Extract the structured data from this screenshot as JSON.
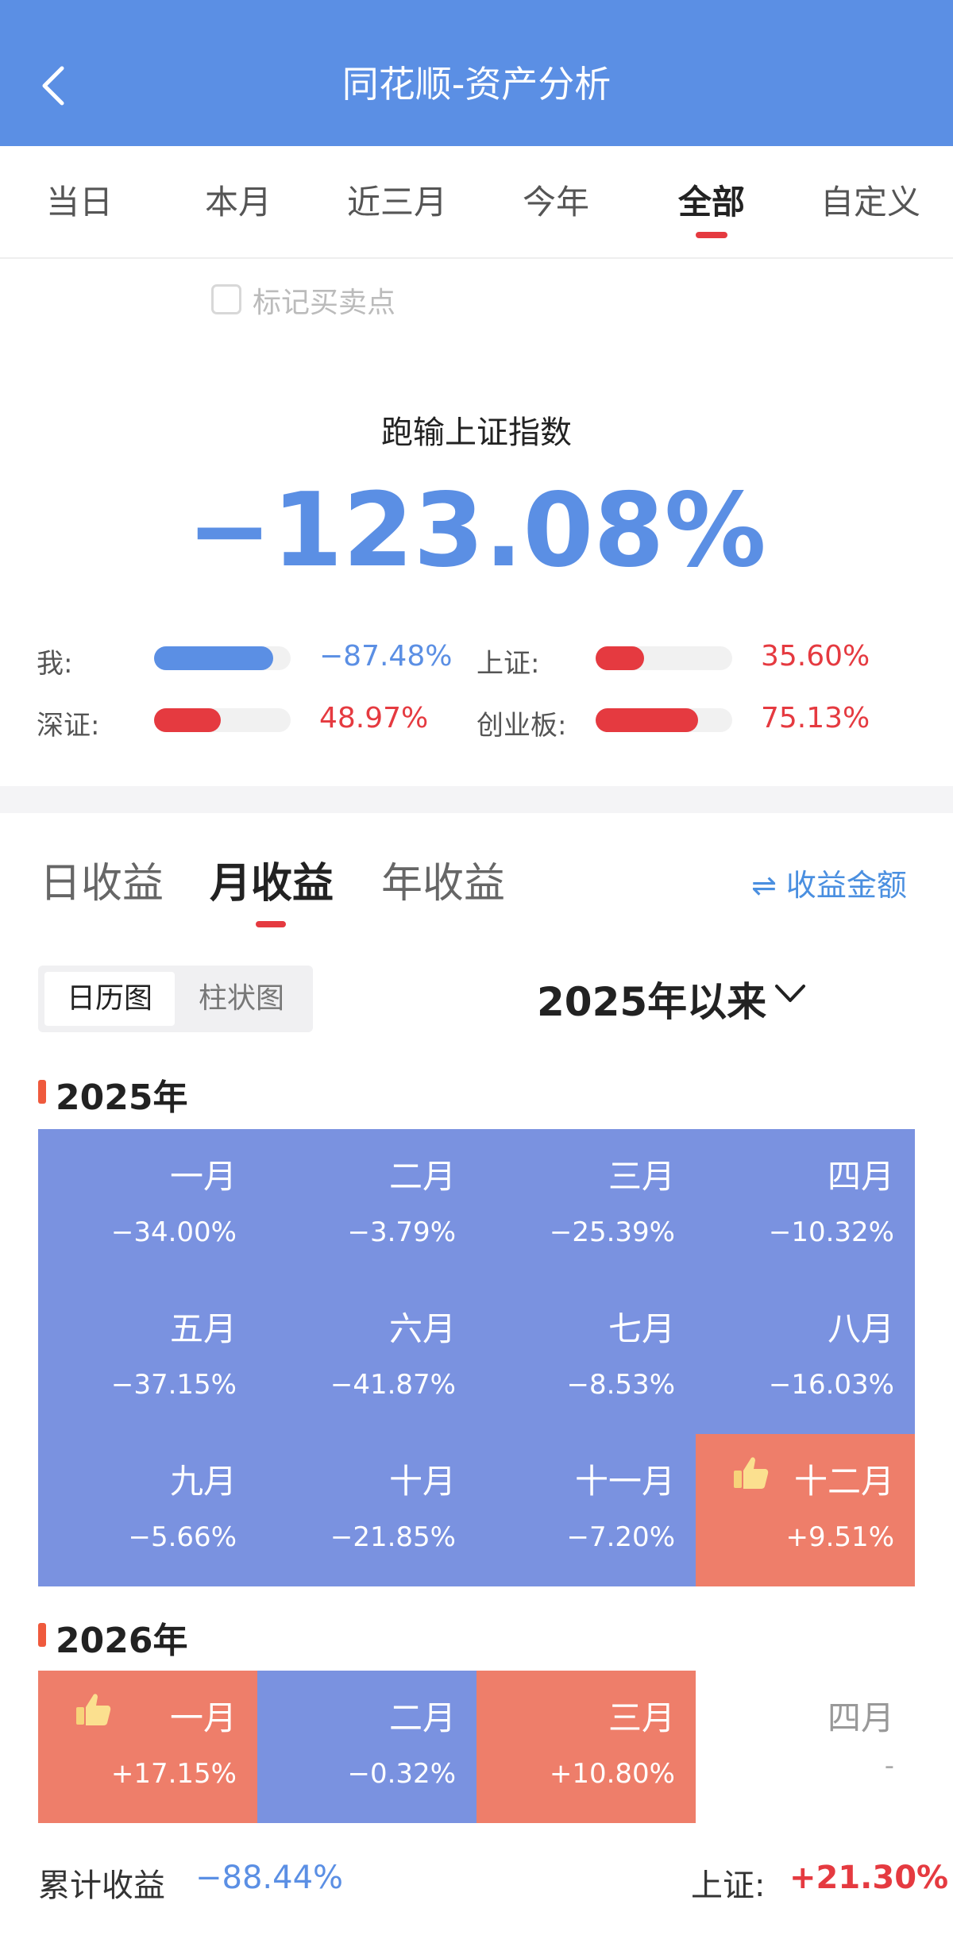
{
  "header": {
    "title": "同花顺-资产分析"
  },
  "tabs": [
    "当日",
    "本月",
    "近三月",
    "今年",
    "全部",
    "自定义"
  ],
  "active_tab": "全部",
  "mark_trades": {
    "label": "标记买卖点",
    "checked": false
  },
  "summary": {
    "label": "跑输上证指数",
    "value": "−123.08%"
  },
  "compare": {
    "me": {
      "label": "我:",
      "value": "−87.48%",
      "fraction": 0.87
    },
    "sh": {
      "label": "上证:",
      "value": "35.60%",
      "fraction": 0.356
    },
    "sz": {
      "label": "深证:",
      "value": "48.97%",
      "fraction": 0.49
    },
    "cyb": {
      "label": "创业板:",
      "value": "75.13%",
      "fraction": 0.75
    }
  },
  "earnings_tabs": [
    "日收益",
    "月收益",
    "年收益"
  ],
  "active_earnings_tab": "月收益",
  "toggle_amount": "⇌ 收益金额",
  "view_options": [
    "日历图",
    "柱状图"
  ],
  "active_view": "日历图",
  "range": "2025年以来",
  "years": [
    {
      "year": "2025年",
      "months": [
        {
          "name": "一月",
          "value": "−34.00%",
          "positive": false
        },
        {
          "name": "二月",
          "value": "−3.79%",
          "positive": false
        },
        {
          "name": "三月",
          "value": "−25.39%",
          "positive": false
        },
        {
          "name": "四月",
          "value": "−10.32%",
          "positive": false
        },
        {
          "name": "五月",
          "value": "−37.15%",
          "positive": false
        },
        {
          "name": "六月",
          "value": "−41.87%",
          "positive": false
        },
        {
          "name": "七月",
          "value": "−8.53%",
          "positive": false
        },
        {
          "name": "八月",
          "value": "−16.03%",
          "positive": false
        },
        {
          "name": "九月",
          "value": "−5.66%",
          "positive": false
        },
        {
          "name": "十月",
          "value": "−21.85%",
          "positive": false
        },
        {
          "name": "十一月",
          "value": "−7.20%",
          "positive": false
        },
        {
          "name": "十二月",
          "value": "+9.51%",
          "positive": true,
          "best": true
        }
      ]
    },
    {
      "year": "2026年",
      "months": [
        {
          "name": "一月",
          "value": "+17.15%",
          "positive": true,
          "best": true
        },
        {
          "name": "二月",
          "value": "−0.32%",
          "positive": false
        },
        {
          "name": "三月",
          "value": "+10.80%",
          "positive": true
        },
        {
          "name": "四月",
          "value": "-",
          "empty": true
        }
      ]
    }
  ],
  "footer": {
    "cumulative_label": "累计收益",
    "cumulative_value": "−88.44%",
    "sh_label": "上证:",
    "sh_value": "+21.30%"
  },
  "colors": {
    "header": "#5b8fe4",
    "negative": "#7a92e0",
    "positive": "#ee7e6a",
    "accent_red": "#e53a40",
    "accent_blue": "#5b8fe4"
  }
}
